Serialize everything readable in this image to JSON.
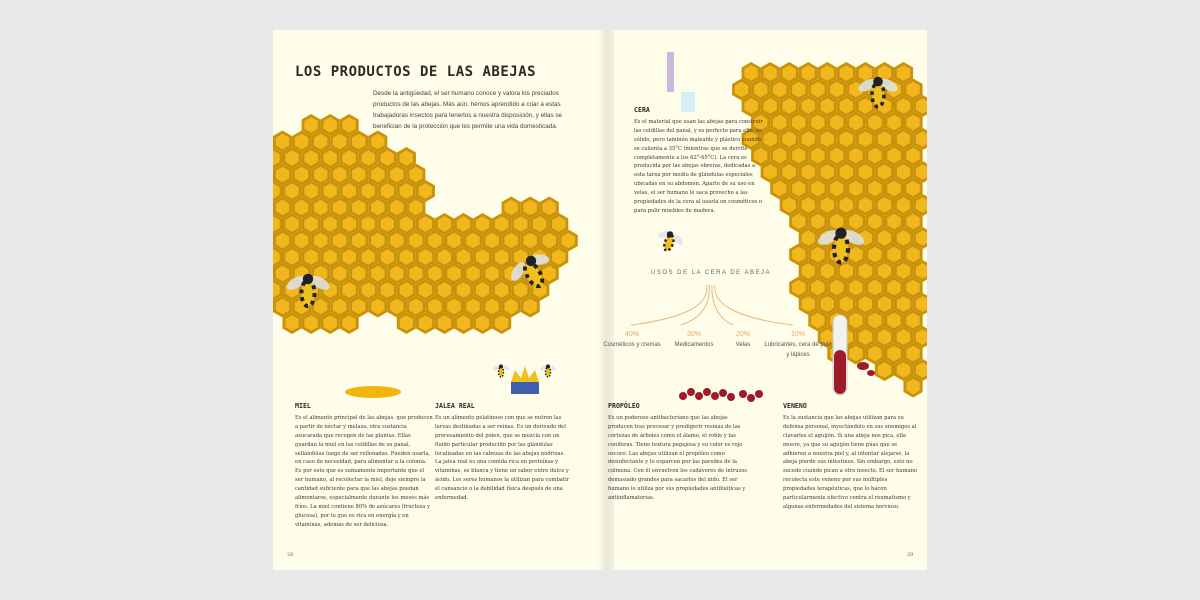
{
  "title": "LOS PRODUCTOS DE LAS ABEJAS",
  "intro": "Desde la antigüedad, el ser humano conoce y valora los preciados productos de las abejas. Más aún, hemos aprendido a criar a estas trabajadoras insectos para tenerlos a nuestra disposición, y ellas se benefician de la protección que les permite una vida domesticada.",
  "sections": {
    "miel": {
      "heading": "MIEL",
      "body": "Es el alimento principal de las abejas, que producen a partir de néctar y melaza, otra sustancia azucarada que recogen de las plantas. Ellas guardan la miel en las celdillas de su panal, sellándolas luego de ser rellenadas. Pueden usarla, en caso de necesidad, para alimentar a la colonia. Es por esto que es sumamente importante que el ser humano, al recolectar la miel, deje siempre la cantidad suficiente para que las abejas puedan alimentarse, especialmente durante los meses más fríos. La miel contiene 80% de azúcares (fructosa y glucosa), por lo que es rica en energía y en vitaminas, además de ser deliciosa."
    },
    "jalea": {
      "heading": "JALEA REAL",
      "body": "Es un alimento gelatinoso con que se nutren las larvas destinadas a ser reinas. Es un derivado del procesamiento del polen, que se mezcla con un fluido particular producido por las glándulas localizadas en las cabezas de las abejas nodrizas. La jalea real es una comida rica en proteínas y vitaminas, es blanca y tiene un sabor entre dulce y ácido. Los seres humanos la utilizan para combatir el cansancio o la debilidad física después de una enfermedad."
    },
    "cera": {
      "heading": "CERA",
      "body": "Es el material que usan las abejas para construir las celdillas del panal, y es perfecto para ello: es sólido, pero también maleable y plástico cuando se calienta a 35°C (mientras que se derrite completamente a los 62°-65°C). La cera es producida por las abejas obreras, dedicadas a esta tarea por medio de glándulas especiales ubicadas en su abdomen. Aparte de su uso en velas, el ser humano le saca provecho a las propiedades de la cera al usarla en cosméticos o para pulir muebles de madera."
    },
    "propoleo": {
      "heading": "PROPÓLEO",
      "body": "Es un poderoso antibacteriano que las abejas producen tras procesar y predigerir resinas de las cortezas de árboles como el álamo, el roble y las coníferas. Tiene textura pegajosa y su color es rojo oscuro. Las abejas utilizan el propóleo como desinfectante y lo esparcen por las paredes de la colmena. Con él envuelven los cadáveres de intrusos demasiado grandes para sacarlos del nido. El ser humano lo utiliza por sus propiedades antibióticas y antiinflamatorias."
    },
    "veneno": {
      "heading": "VENENO",
      "body": "Es la sustancia que las abejas utilizan para su defensa personal, inyectándolo en sus enemigos al clavarles el aguijón. Si una abeja nos pica, ella muere, ya que su aguijón tiene púas que se adhieren a nuestra piel y, al intentar alejarse, la abeja pierde sus intestinos. Sin embargo, esto no sucede cuando pican a otro insecto. El ser humano recolecta este veneno por sus múltiples propiedades terapéuticas, que lo hacen particularmente efectivo contra el reumatismo y algunas enfermedades del sistema nervioso."
    }
  },
  "uses": {
    "title": "USOS DE LA CERA DE ABEJA",
    "items": [
      {
        "pct": "40%",
        "label": "Cosméticos y cremas"
      },
      {
        "pct": "30%",
        "label": "Medicamentos"
      },
      {
        "pct": "20%",
        "label": "Velas"
      },
      {
        "pct": "10%",
        "label": "Lubricantes, cera de pulir y lápices"
      }
    ]
  },
  "page_numbers": {
    "left": "28",
    "right": "29"
  },
  "colors": {
    "honey": "#f2b71e",
    "comb_edge": "#c9920b",
    "propolis": "#9e1b2a",
    "paper": "#fefde9"
  }
}
